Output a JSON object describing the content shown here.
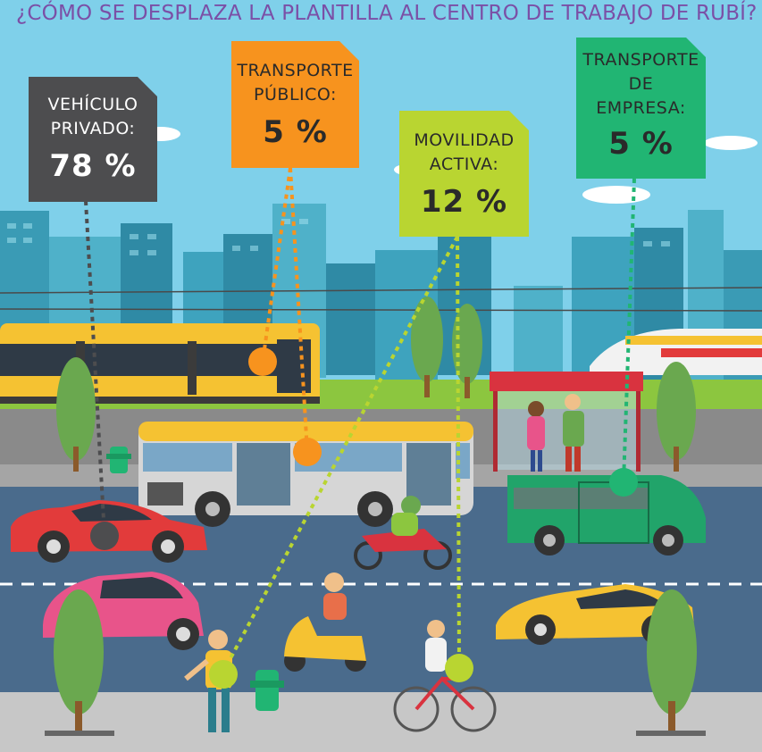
{
  "title": "¿CÓMO SE DESPLAZA LA PLANTILLA AL CENTRO DE TRABAJO DE RUBÍ?",
  "categories": [
    {
      "label_lines": [
        "VEHÍCULO",
        "PRIVADO:"
      ],
      "value": "78 %",
      "color": "#4d4d4f",
      "text_color": "#ffffff"
    },
    {
      "label_lines": [
        "TRANSPORTE",
        "PÚBLICO:"
      ],
      "value": "5 %",
      "color": "#f7931e",
      "text_color": "#2a2a2a"
    },
    {
      "label_lines": [
        "MOVILIDAD",
        "ACTIVA:"
      ],
      "value": "12 %",
      "color": "#b9d531",
      "text_color": "#2a2a2a"
    },
    {
      "label_lines": [
        "TRANSPORTE",
        "DE",
        "EMPRESA:"
      ],
      "value": "5 %",
      "color": "#21b573",
      "text_color": "#2a2a2a"
    }
  ],
  "colors": {
    "sky": "#7fd0ea",
    "title": "#7b4fa6",
    "road": "#4a6b8c",
    "grass": "#8cc63f",
    "sidewalk": "#c7c7c7",
    "city": "#3a9bb5"
  }
}
